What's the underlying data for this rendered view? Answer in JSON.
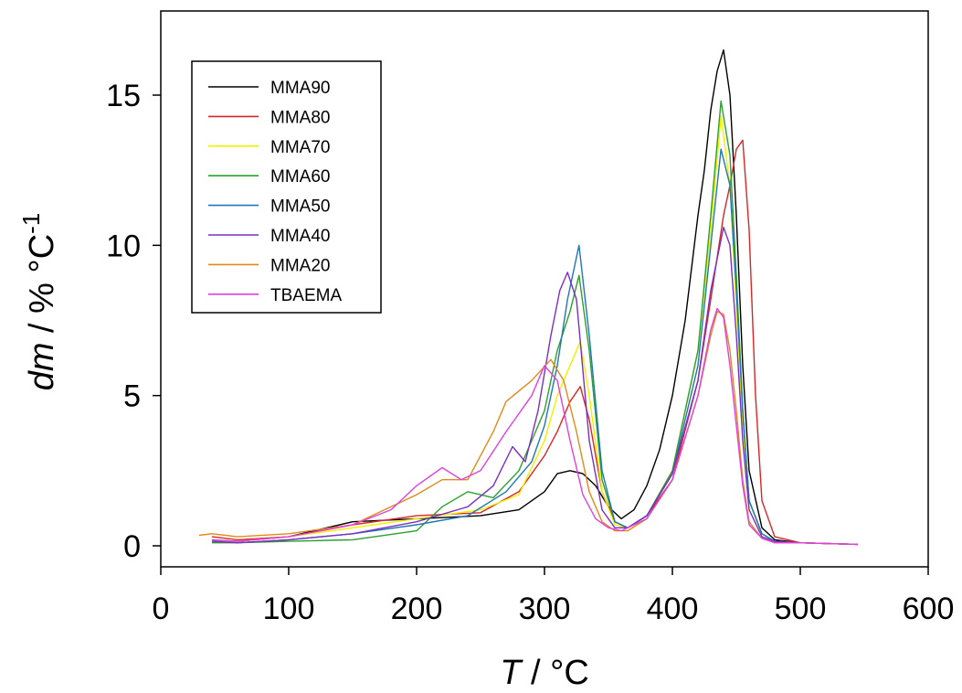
{
  "chart_data": {
    "type": "line",
    "title": "",
    "xlabel": {
      "italic": "T",
      "rest": " / °C"
    },
    "ylabel": {
      "italic": "dm",
      "rest": " / % °C",
      "sup": "-1"
    },
    "xlim": [
      0,
      600
    ],
    "ylim": [
      -0.7,
      17.8
    ],
    "xticks": [
      0,
      100,
      200,
      300,
      400,
      500,
      600
    ],
    "yticks": [
      0,
      5,
      10,
      15
    ],
    "grid": false,
    "legend": "top-left",
    "series": [
      {
        "name": "MMA90",
        "color": "#000000",
        "x": [
          40,
          60,
          100,
          150,
          200,
          250,
          280,
          300,
          310,
          320,
          330,
          340,
          350,
          360,
          370,
          380,
          390,
          400,
          410,
          420,
          425,
          430,
          435,
          440,
          445,
          450,
          455,
          460,
          470,
          480,
          500,
          545
        ],
        "y": [
          0.2,
          0.15,
          0.3,
          0.8,
          0.9,
          1.0,
          1.2,
          1.8,
          2.4,
          2.5,
          2.4,
          2.0,
          1.3,
          0.9,
          1.2,
          2.0,
          3.2,
          5.0,
          7.5,
          11.0,
          12.5,
          14.5,
          15.8,
          16.5,
          15.0,
          11.0,
          6.0,
          2.5,
          0.6,
          0.2,
          0.1,
          0.05
        ]
      },
      {
        "name": "MMA80",
        "color": "#d62728",
        "x": [
          40,
          60,
          100,
          150,
          200,
          250,
          280,
          300,
          310,
          320,
          328,
          335,
          345,
          355,
          365,
          380,
          400,
          420,
          430,
          440,
          445,
          450,
          455,
          460,
          465,
          470,
          480,
          500,
          545
        ],
        "y": [
          0.3,
          0.2,
          0.3,
          0.7,
          1.0,
          1.1,
          1.8,
          3.0,
          3.8,
          4.8,
          5.3,
          4.2,
          1.8,
          0.8,
          0.6,
          1.0,
          2.2,
          5.5,
          8.2,
          11.0,
          12.0,
          13.2,
          13.5,
          10.5,
          5.0,
          1.5,
          0.3,
          0.1,
          0.05
        ]
      },
      {
        "name": "MMA70",
        "color": "#f0f000",
        "x": [
          40,
          60,
          100,
          150,
          200,
          250,
          280,
          300,
          310,
          320,
          328,
          335,
          345,
          355,
          365,
          380,
          400,
          420,
          430,
          438,
          445,
          450,
          455,
          460,
          470,
          480,
          500,
          545
        ],
        "y": [
          0.2,
          0.15,
          0.3,
          0.6,
          0.9,
          1.2,
          1.7,
          3.5,
          5.0,
          6.0,
          6.8,
          5.0,
          1.8,
          0.7,
          0.6,
          1.0,
          2.5,
          6.5,
          10.5,
          14.3,
          12.0,
          8.0,
          4.0,
          1.5,
          0.4,
          0.15,
          0.1,
          0.05
        ]
      },
      {
        "name": "MMA60",
        "color": "#2ca02c",
        "x": [
          40,
          60,
          100,
          150,
          200,
          220,
          240,
          260,
          280,
          300,
          310,
          320,
          327,
          335,
          345,
          355,
          365,
          380,
          400,
          420,
          430,
          438,
          445,
          450,
          455,
          460,
          470,
          480,
          500,
          545
        ],
        "y": [
          0.1,
          0.1,
          0.15,
          0.2,
          0.5,
          1.3,
          1.8,
          1.6,
          2.5,
          4.5,
          6.5,
          7.8,
          9.0,
          6.5,
          2.2,
          0.8,
          0.6,
          1.0,
          2.5,
          6.5,
          11.0,
          14.8,
          13.0,
          9.0,
          4.5,
          1.5,
          0.4,
          0.15,
          0.1,
          0.05
        ]
      },
      {
        "name": "MMA50",
        "color": "#1f77b4",
        "x": [
          40,
          60,
          100,
          150,
          200,
          240,
          270,
          290,
          300,
          310,
          318,
          327,
          335,
          345,
          355,
          365,
          380,
          400,
          420,
          430,
          438,
          445,
          450,
          455,
          460,
          470,
          480,
          500,
          545
        ],
        "y": [
          0.15,
          0.1,
          0.2,
          0.4,
          0.7,
          1.0,
          1.8,
          2.8,
          4.0,
          6.0,
          8.2,
          10.0,
          7.0,
          2.5,
          0.8,
          0.6,
          1.0,
          2.4,
          6.0,
          10.0,
          13.2,
          12.0,
          8.5,
          4.5,
          1.5,
          0.4,
          0.15,
          0.1,
          0.05
        ]
      },
      {
        "name": "MMA40",
        "color": "#7b2fbf",
        "x": [
          40,
          60,
          100,
          150,
          200,
          240,
          260,
          275,
          285,
          295,
          305,
          312,
          318,
          325,
          335,
          345,
          355,
          365,
          380,
          400,
          420,
          430,
          440,
          445,
          450,
          455,
          460,
          470,
          480,
          500,
          545
        ],
        "y": [
          0.15,
          0.1,
          0.2,
          0.4,
          0.8,
          1.3,
          2.0,
          3.3,
          2.8,
          4.5,
          7.0,
          8.5,
          9.1,
          8.2,
          3.5,
          1.2,
          0.6,
          0.6,
          1.0,
          2.4,
          5.5,
          8.5,
          10.6,
          10.0,
          7.0,
          3.5,
          1.2,
          0.3,
          0.15,
          0.1,
          0.05
        ]
      },
      {
        "name": "MMA20",
        "color": "#e08a1a",
        "x": [
          30,
          40,
          60,
          100,
          150,
          200,
          220,
          240,
          260,
          270,
          290,
          305,
          315,
          325,
          335,
          345,
          355,
          365,
          380,
          400,
          420,
          430,
          435,
          440,
          445,
          450,
          455,
          460,
          470,
          480,
          500,
          545
        ],
        "y": [
          0.35,
          0.4,
          0.3,
          0.4,
          0.7,
          1.7,
          2.2,
          2.2,
          3.8,
          4.8,
          5.5,
          6.2,
          5.5,
          3.8,
          1.8,
          0.8,
          0.5,
          0.5,
          0.9,
          2.2,
          5.0,
          7.0,
          7.8,
          7.7,
          6.5,
          4.5,
          2.2,
          0.8,
          0.25,
          0.1,
          0.1,
          0.05
        ]
      },
      {
        "name": "TBAEMA",
        "color": "#e040e0",
        "x": [
          40,
          60,
          100,
          150,
          180,
          200,
          220,
          235,
          250,
          270,
          290,
          300,
          310,
          320,
          330,
          340,
          350,
          360,
          380,
          400,
          420,
          430,
          435,
          440,
          445,
          450,
          455,
          460,
          470,
          480,
          500,
          545
        ],
        "y": [
          0.2,
          0.15,
          0.3,
          0.7,
          1.2,
          2.0,
          2.6,
          2.2,
          2.5,
          3.8,
          5.0,
          6.0,
          5.5,
          3.5,
          1.7,
          0.9,
          0.6,
          0.5,
          0.9,
          2.2,
          5.0,
          7.2,
          7.9,
          7.6,
          6.0,
          4.0,
          2.0,
          0.7,
          0.25,
          0.1,
          0.1,
          0.05
        ]
      }
    ]
  }
}
